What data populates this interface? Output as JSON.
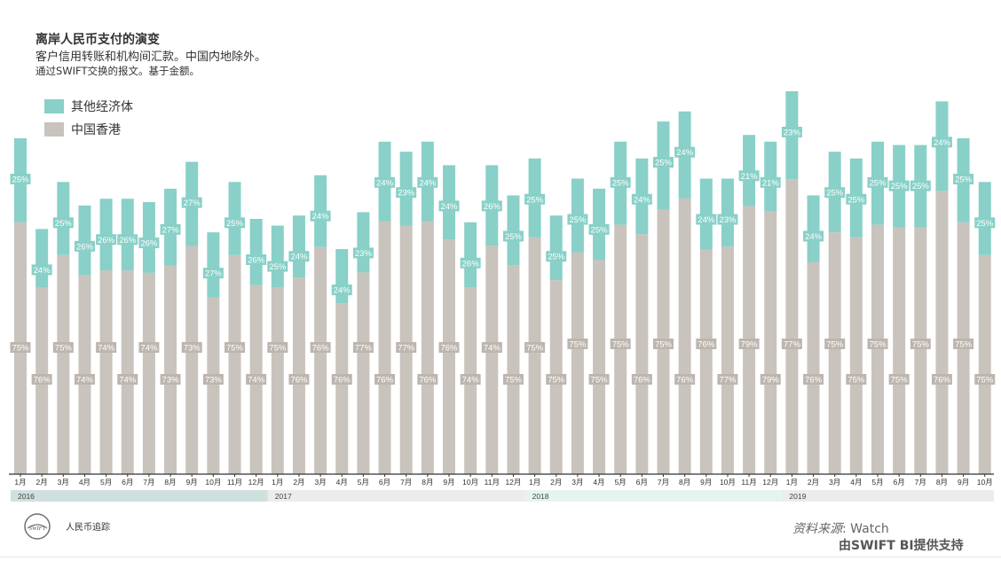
{
  "header": {
    "title": "离岸人民币支付的演变",
    "subtitle": "客户信用转账和机构间汇款。中国内地除外。",
    "note": "通过SWIFT交换的报文。基于金额。"
  },
  "legend": {
    "others_label": "其他经济体",
    "hk_label": "中国香港"
  },
  "colors": {
    "others": "#88d0c8",
    "hk": "#c9c3bd",
    "hk_label_bg": "#bdb6ae",
    "axis": "#333333"
  },
  "footer": {
    "brand": "人民币追踪",
    "logo_text": "SWIFT",
    "source_label": "资料来源",
    "source_value": "Watch",
    "support": "由SWIFT BI提供支持"
  },
  "chart_data": {
    "type": "bar",
    "stacked": true,
    "categories": [
      "1月",
      "2月",
      "3月",
      "4月",
      "5月",
      "6月",
      "7月",
      "8月",
      "9月",
      "10月",
      "11月",
      "12月",
      "1月",
      "2月",
      "3月",
      "4月",
      "5月",
      "6月",
      "7月",
      "8月",
      "9月",
      "10月",
      "11月",
      "12月",
      "1月",
      "2月",
      "3月",
      "4月",
      "5月",
      "6月",
      "7月",
      "8月",
      "9月",
      "10月",
      "11月",
      "12月",
      "1月",
      "2月",
      "3月",
      "4月",
      "5月",
      "6月",
      "7月",
      "8月",
      "9月",
      "10月"
    ],
    "years": [
      {
        "label": "2016",
        "start": 0,
        "end": 11
      },
      {
        "label": "2017",
        "start": 12,
        "end": 23
      },
      {
        "label": "2018",
        "start": 24,
        "end": 35
      },
      {
        "label": "2019",
        "start": 36,
        "end": 45
      }
    ],
    "series": [
      {
        "name": "中国香港",
        "labels": [
          "75%",
          "76%",
          "75%",
          "74%",
          "74%",
          "74%",
          "74%",
          "73%",
          "73%",
          "73%",
          "75%",
          "74%",
          "75%",
          "76%",
          "76%",
          "76%",
          "77%",
          "76%",
          "77%",
          "76%",
          "76%",
          "74%",
          "74%",
          "75%",
          "75%",
          "75%",
          "75%",
          "75%",
          "75%",
          "76%",
          "75%",
          "76%",
          "76%",
          "77%",
          "79%",
          "79%",
          "77%",
          "76%",
          "75%",
          "75%",
          "75%",
          "75%",
          "75%",
          "76%",
          "75%",
          "75%"
        ]
      },
      {
        "name": "其他经济体",
        "labels": [
          "25%",
          "24%",
          "25%",
          "26%",
          "26%",
          "26%",
          "26%",
          "27%",
          "27%",
          "27%",
          "25%",
          "26%",
          "25%",
          "24%",
          "24%",
          "24%",
          "23%",
          "24%",
          "23%",
          "24%",
          "24%",
          "26%",
          "26%",
          "25%",
          "25%",
          "25%",
          "25%",
          "25%",
          "25%",
          "24%",
          "25%",
          "24%",
          "24%",
          "23%",
          "21%",
          "21%",
          "23%",
          "24%",
          "25%",
          "25%",
          "25%",
          "25%",
          "25%",
          "24%",
          "25%",
          "25%"
        ]
      }
    ],
    "totals": [
      100,
      73,
      87,
      80,
      82,
      82,
      81,
      85,
      93,
      72,
      87,
      76,
      74,
      77,
      89,
      67,
      78,
      99,
      96,
      99,
      92,
      75,
      92,
      83,
      94,
      77,
      88,
      85,
      99,
      94,
      105,
      108,
      88,
      88,
      101,
      99,
      114,
      83,
      96,
      94,
      99,
      98,
      98,
      111,
      100,
      87
    ],
    "hk_shares": [
      0.75,
      0.76,
      0.75,
      0.74,
      0.74,
      0.74,
      0.74,
      0.73,
      0.73,
      0.73,
      0.75,
      0.74,
      0.75,
      0.76,
      0.76,
      0.76,
      0.77,
      0.76,
      0.77,
      0.76,
      0.76,
      0.74,
      0.74,
      0.75,
      0.75,
      0.75,
      0.75,
      0.75,
      0.75,
      0.76,
      0.75,
      0.76,
      0.76,
      0.77,
      0.79,
      0.79,
      0.77,
      0.76,
      0.75,
      0.75,
      0.75,
      0.75,
      0.75,
      0.76,
      0.75,
      0.75
    ],
    "ylim": [
      0,
      114
    ],
    "grid": false,
    "legend_position": "top-left"
  }
}
